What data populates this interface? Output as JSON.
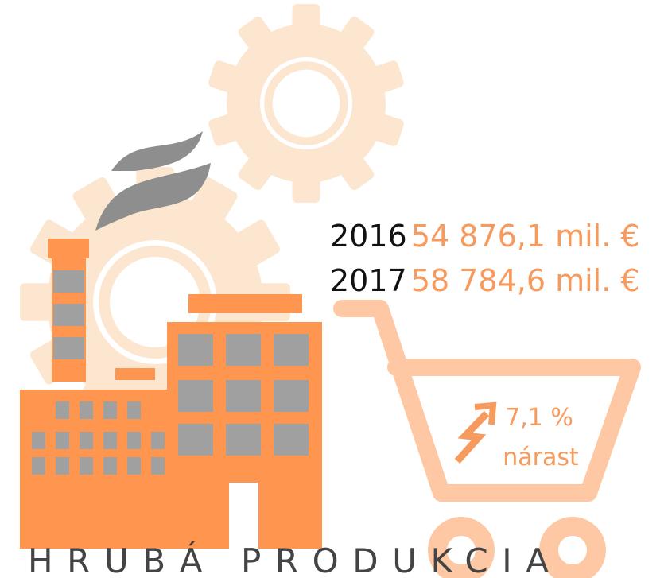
{
  "rows": [
    {
      "year": "2016",
      "value": "54 876,1 mil. €"
    },
    {
      "year": "2017",
      "value": "58 784,6 mil. €"
    }
  ],
  "growth": {
    "value": "7,1 %",
    "label": "nárast"
  },
  "title": "HRUBÁ PRODUKCIA"
}
